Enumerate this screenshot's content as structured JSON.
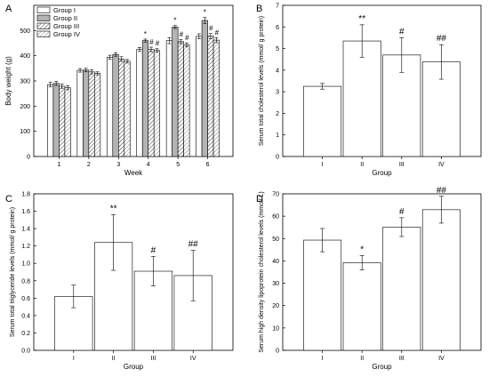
{
  "chart_data": [
    {
      "panel": "A",
      "type": "bar",
      "xlabel": "Week",
      "ylabel": "Body weight (g)",
      "ylim": [
        0,
        600
      ],
      "yticks": [
        0,
        100,
        200,
        300,
        400,
        500
      ],
      "categories": [
        "1",
        "2",
        "3",
        "4",
        "5",
        "6"
      ],
      "legend_position": "top-left",
      "series": [
        {
          "name": "Group I",
          "fill": "white",
          "values": [
            285,
            342,
            394,
            425,
            460,
            477
          ],
          "errors": [
            9,
            7,
            8,
            8,
            12,
            10
          ]
        },
        {
          "name": "Group II",
          "fill": "gray",
          "values": [
            290,
            343,
            405,
            460,
            514,
            540
          ],
          "errors": [
            8,
            7,
            7,
            6,
            6,
            12
          ]
        },
        {
          "name": "Group III",
          "fill": "hatch",
          "values": [
            279,
            336,
            387,
            425,
            456,
            478
          ],
          "errors": [
            8,
            8,
            9,
            9,
            8,
            10
          ]
        },
        {
          "name": "Group IV",
          "fill": "hatch2",
          "values": [
            273,
            330,
            378,
            421,
            443,
            462
          ],
          "errors": [
            8,
            6,
            7,
            7,
            8,
            10
          ]
        }
      ],
      "annotations": [
        {
          "category": "4",
          "series": "Group II",
          "text": "*"
        },
        {
          "category": "4",
          "series": "Group III",
          "text": "#"
        },
        {
          "category": "4",
          "series": "Group IV",
          "text": "#"
        },
        {
          "category": "5",
          "series": "Group II",
          "text": "*"
        },
        {
          "category": "5",
          "series": "Group III",
          "text": "#"
        },
        {
          "category": "5",
          "series": "Group IV",
          "text": "#"
        },
        {
          "category": "6",
          "series": "Group II",
          "text": "*"
        },
        {
          "category": "6",
          "series": "Group III",
          "text": "#"
        },
        {
          "category": "6",
          "series": "Group IV",
          "text": "#"
        }
      ]
    },
    {
      "panel": "B",
      "type": "bar",
      "xlabel": "Group",
      "ylabel": "Serum total cholesterol levels (mmol/ g protein)",
      "ylim": [
        0,
        7
      ],
      "yticks": [
        0,
        1,
        2,
        3,
        4,
        5,
        6,
        7
      ],
      "categories": [
        "I",
        "II",
        "III",
        "IV"
      ],
      "values": [
        3.25,
        5.35,
        4.7,
        4.38
      ],
      "errors": [
        0.13,
        0.75,
        0.8,
        0.8
      ],
      "annotations": [
        "",
        "**",
        "#",
        "##"
      ]
    },
    {
      "panel": "C",
      "type": "bar",
      "xlabel": "Group",
      "ylabel": "Serum total  triglyceride levels (mmol/ g protein)",
      "ylim": [
        0,
        1.8
      ],
      "yticks": [
        0.0,
        0.2,
        0.4,
        0.6,
        0.8,
        1.0,
        1.2,
        1.4,
        1.6,
        1.8
      ],
      "categories": [
        "I",
        "II",
        "III",
        "IV"
      ],
      "values": [
        0.62,
        1.24,
        0.91,
        0.86
      ],
      "errors": [
        0.13,
        0.32,
        0.17,
        0.29
      ],
      "annotations": [
        "",
        "**",
        "#",
        "##"
      ]
    },
    {
      "panel": "D",
      "type": "bar",
      "xlabel": "Group",
      "ylabel": "Serum high density lipoprotein cholesterol levels (mmol/ L)",
      "ylim": [
        0,
        70
      ],
      "yticks": [
        0,
        10,
        20,
        30,
        40,
        50,
        60,
        70
      ],
      "categories": [
        "I",
        "II",
        "III",
        "IV"
      ],
      "values": [
        49.3,
        39.2,
        55.1,
        62.9
      ],
      "errors": [
        5.2,
        3.2,
        4.2,
        6.0
      ],
      "annotations": [
        "",
        "*",
        "#",
        "##"
      ]
    }
  ]
}
